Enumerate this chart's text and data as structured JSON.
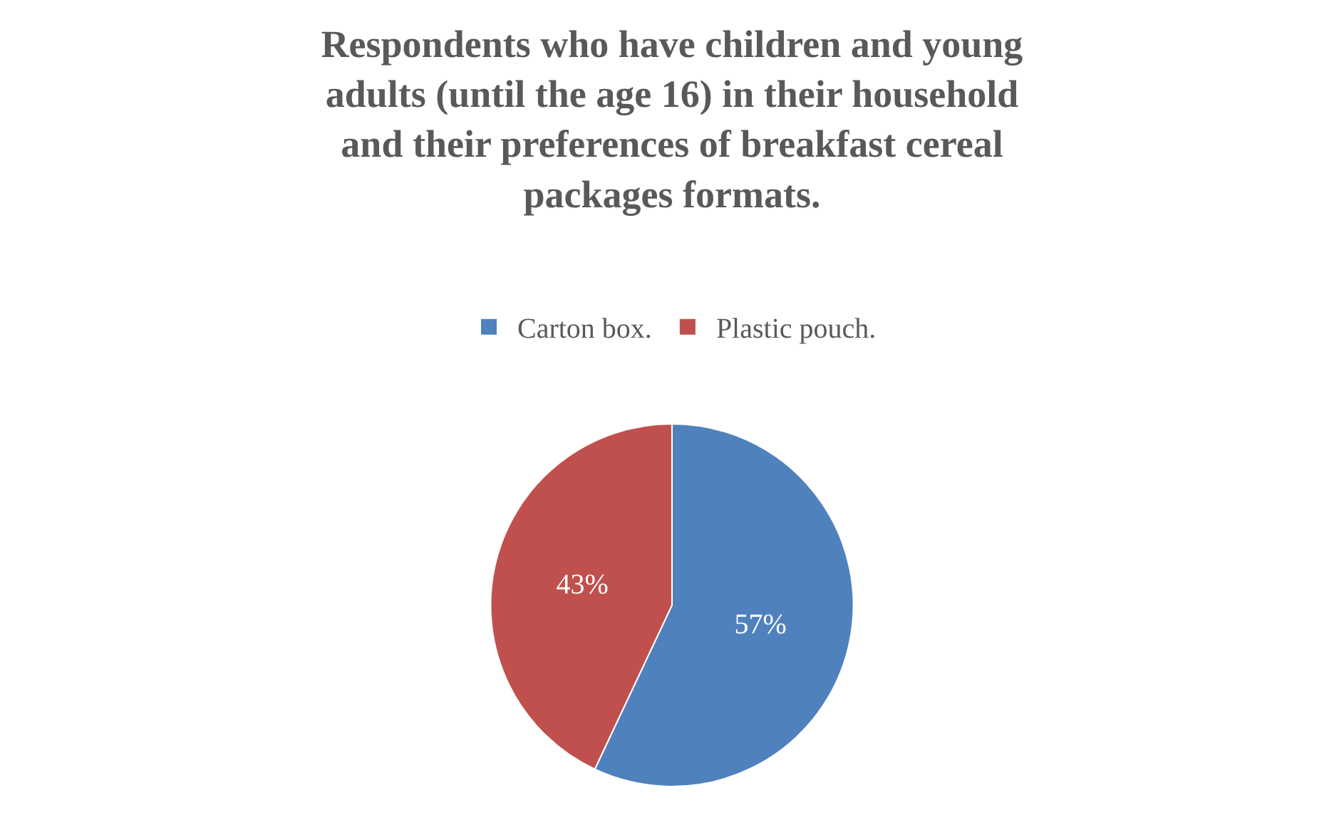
{
  "chart_data": {
    "type": "pie",
    "title": "Respondents who have children and young adults (until the age 16) in their household and their preferences of breakfast cereal packages formats.",
    "categories": [
      "Carton box.",
      "Plastic pouch."
    ],
    "values": [
      57,
      43
    ],
    "colors": [
      "#4f81bd",
      "#c0504d"
    ],
    "value_labels": [
      "57%",
      "43%"
    ],
    "legend": "top"
  }
}
